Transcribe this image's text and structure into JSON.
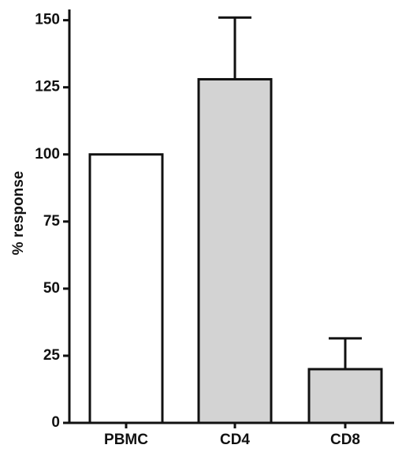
{
  "chart_data": {
    "type": "bar",
    "y_label": "% response",
    "categories": [
      "PBMC",
      "CD4",
      "CD8"
    ],
    "values": [
      100,
      128,
      20
    ],
    "errors": [
      null,
      23,
      11.5
    ],
    "colors": [
      "#ffffff",
      "#d3d3d3",
      "#d3d3d3"
    ],
    "ylim": [
      0,
      154
    ],
    "yticks": [
      0,
      25,
      50,
      75,
      100,
      125,
      150
    ]
  }
}
